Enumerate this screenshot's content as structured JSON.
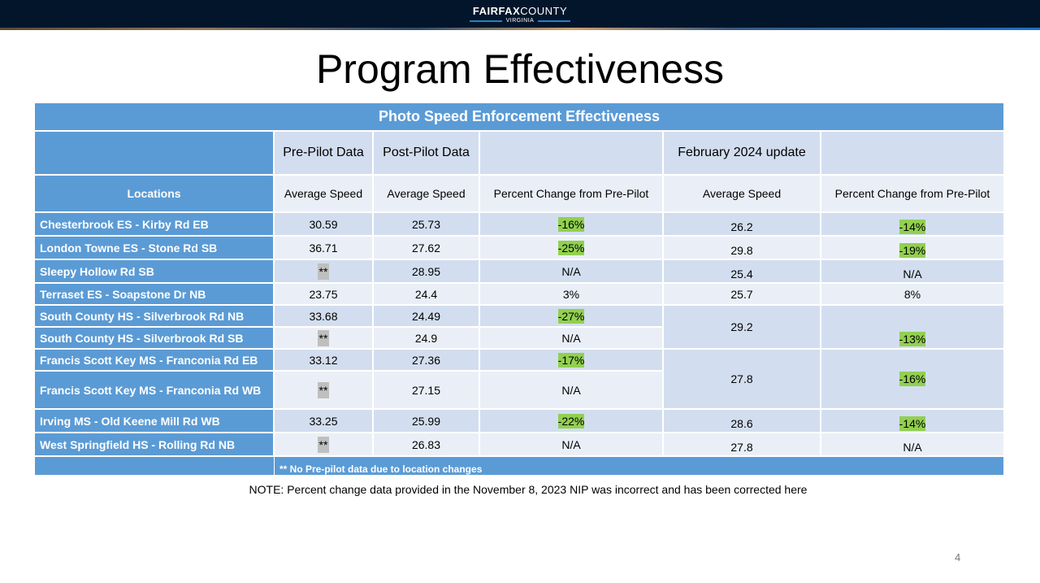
{
  "header": {
    "logo_main": "FAIRFAX",
    "logo_main2": "COUNTY",
    "logo_sub": "VIRGINIA"
  },
  "title": "Program Effectiveness",
  "table": {
    "title": "Photo Speed Enforcement Effectiveness",
    "group_headers": [
      "Pre-Pilot Data",
      "Post-Pilot Data",
      "February 2024 update"
    ],
    "columns": [
      "Locations",
      "Average Speed",
      "Average Speed",
      "Percent Change from Pre-Pilot",
      "Average Speed",
      "Percent Change from Pre-Pilot"
    ],
    "rows": [
      {
        "location": "Chesterbrook ES - Kirby Rd EB",
        "pre": "30.59",
        "post": "25.73",
        "change": "-16%",
        "feb": "26.2",
        "feb_change": "-14%"
      },
      {
        "location": "London Towne ES - Stone Rd SB",
        "pre": "36.71",
        "post": "27.62",
        "change": "-25%",
        "feb": "29.8",
        "feb_change": "-19%"
      },
      {
        "location": "Sleepy Hollow Rd SB",
        "pre": "**",
        "post": "28.95",
        "change": "N/A",
        "feb": "25.4",
        "feb_change": "N/A"
      },
      {
        "location": "Terraset ES - Soapstone Dr NB",
        "pre": "23.75",
        "post": "24.4",
        "change": "3%",
        "feb": "25.7",
        "feb_change": "8%"
      },
      {
        "location": "South County HS - Silverbrook Rd NB",
        "pre": "33.68",
        "post": "24.49",
        "change": "-27%",
        "feb": "29.2",
        "feb_change": "-13%"
      },
      {
        "location": "South County HS - Silverbrook Rd SB",
        "pre": "**",
        "post": "24.9",
        "change": "N/A"
      },
      {
        "location": "Francis Scott Key MS - Franconia Rd EB",
        "pre": "33.12",
        "post": "27.36",
        "change": "-17%",
        "feb": "27.8",
        "feb_change": "-16%"
      },
      {
        "location": "Francis Scott Key MS - Franconia Rd WB",
        "pre": "**",
        "post": "27.15",
        "change": "N/A"
      },
      {
        "location": "Irving MS - Old Keene Mill Rd WB",
        "pre": "33.25",
        "post": "25.99",
        "change": "-22%",
        "feb": "28.6",
        "feb_change": "-14%"
      },
      {
        "location": "West Springfield HS - Rolling Rd NB",
        "pre": "**",
        "post": "26.83",
        "change": "N/A",
        "feb": "27.8",
        "feb_change": "N/A"
      }
    ],
    "footnote": "** No Pre-pilot data due to location changes"
  },
  "note": "NOTE:  Percent change data provided in the November 8, 2023 NIP was incorrect and has been corrected here",
  "page_number": "4"
}
